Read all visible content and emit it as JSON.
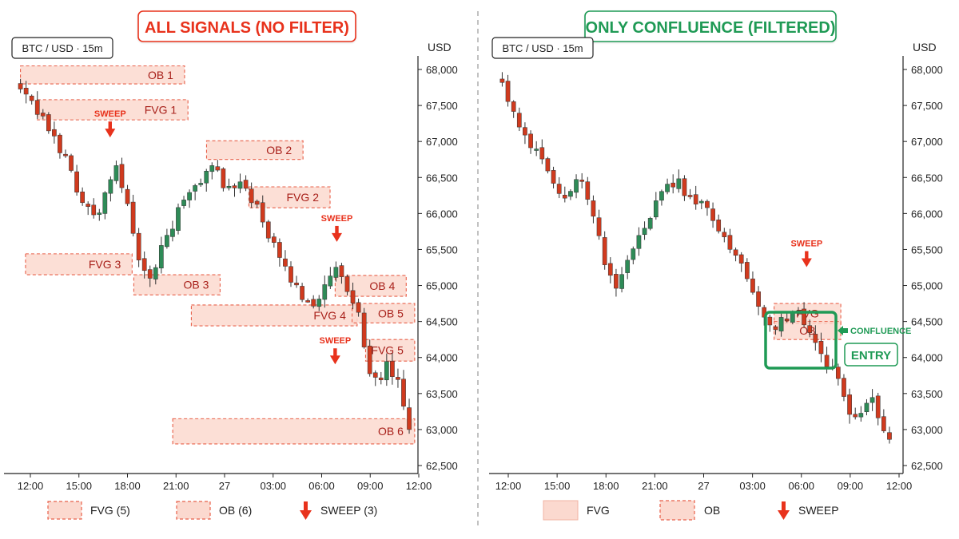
{
  "colors": {
    "up": "#2e8b57",
    "down": "#d03a1e",
    "zone_fill": "#fbd9cf",
    "zone_stroke": "#e8604a",
    "zone_text": "#a8201a",
    "sweep": "#e8321c",
    "confluence": "#1f9a55",
    "title_red": "#e8321c",
    "axis": "#222222",
    "divider": "#9a9a9a"
  },
  "left_panel": {
    "title": "ALL SIGNALS (NO FILTER)",
    "symbol": "BTC / USD · 15m",
    "legend": [
      {
        "icon": "fvg-box-icon",
        "label": "FVG (5)"
      },
      {
        "icon": "ob-box-icon",
        "label": "OB (6)"
      },
      {
        "icon": "sweep-arrow-icon",
        "label": "SWEEP (3)"
      }
    ]
  },
  "right_panel": {
    "title": "ONLY CONFLUENCE (FILTERED)",
    "symbol": "BTC / USD · 15m",
    "confluence_label": "CONFLUENCE",
    "entry_label": "ENTRY",
    "legend": [
      {
        "icon": "fvg-box-icon",
        "label": "FVG"
      },
      {
        "icon": "ob-box-icon",
        "label": "OB"
      },
      {
        "icon": "sweep-arrow-icon",
        "label": "SWEEP"
      }
    ]
  },
  "chart_data": [
    {
      "type": "candlestick",
      "title": "ALL SIGNALS (NO FILTER)",
      "symbol": "BTC / USD · 15m",
      "ylabel": "USD",
      "ylim": [
        62500,
        68000
      ],
      "yticks": [
        62500,
        63000,
        63500,
        64000,
        64500,
        65000,
        65500,
        66000,
        66500,
        67000,
        67500,
        68000
      ],
      "ytick_labels": [
        "62,500",
        "63,000",
        "63,500",
        "64,000",
        "64,500",
        "65,000",
        "65,500",
        "66,000",
        "66,500",
        "67,000",
        "67,500",
        "68,000"
      ],
      "xtick_labels": [
        "12:00",
        "15:00",
        "18:00",
        "21:00",
        "27",
        "03:00",
        "06:00",
        "09:00",
        "12:00"
      ],
      "x_range": [
        -0.5,
        23.4
      ],
      "key_closes": [
        [
          0,
          67700
        ],
        [
          1.3,
          67300
        ],
        [
          2.5,
          66850
        ],
        [
          3.8,
          66100
        ],
        [
          4.5,
          65950
        ],
        [
          5.3,
          66400
        ],
        [
          5.7,
          66700
        ],
        [
          6.2,
          66250
        ],
        [
          6.7,
          65600
        ],
        [
          7.2,
          65250
        ],
        [
          7.6,
          65000
        ],
        [
          8.3,
          65500
        ],
        [
          9.5,
          66100
        ],
        [
          10.7,
          66500
        ],
        [
          11.5,
          66650
        ],
        [
          12.3,
          66300
        ],
        [
          13.2,
          66450
        ],
        [
          14.0,
          66050
        ],
        [
          15.2,
          65400
        ],
        [
          16.3,
          64950
        ],
        [
          17.2,
          64750
        ],
        [
          18.0,
          64950
        ],
        [
          18.7,
          65250
        ],
        [
          19.3,
          64900
        ],
        [
          20.0,
          64550
        ],
        [
          20.7,
          63800
        ],
        [
          21.2,
          63550
        ],
        [
          21.7,
          63900
        ],
        [
          22.2,
          63700
        ],
        [
          22.7,
          63300
        ],
        [
          23.0,
          62900
        ]
      ],
      "signals": [
        {
          "kind": "OB",
          "label": "OB 1",
          "x0": 0,
          "x1": 9.7,
          "y0": 67800,
          "y1": 68050
        },
        {
          "kind": "FVG",
          "label": "FVG 1",
          "x0": 1.0,
          "x1": 9.9,
          "y0": 67300,
          "y1": 67580
        },
        {
          "kind": "OB",
          "label": "OB 2",
          "x0": 11.0,
          "x1": 16.7,
          "y0": 66750,
          "y1": 67010
        },
        {
          "kind": "FVG",
          "label": "FVG 2",
          "x0": 13.5,
          "x1": 18.3,
          "y0": 66080,
          "y1": 66370
        },
        {
          "kind": "FVG",
          "label": "FVG 3",
          "x0": 0.3,
          "x1": 6.6,
          "y0": 65150,
          "y1": 65440
        },
        {
          "kind": "OB",
          "label": "OB 3",
          "x0": 6.7,
          "x1": 11.8,
          "y0": 64870,
          "y1": 65150
        },
        {
          "kind": "OB",
          "label": "OB 4",
          "x0": 18.6,
          "x1": 22.8,
          "y0": 64850,
          "y1": 65140
        },
        {
          "kind": "FVG",
          "label": "FVG 4",
          "x0": 10.1,
          "x1": 19.9,
          "y0": 64440,
          "y1": 64730
        },
        {
          "kind": "OB",
          "label": "OB 5",
          "x0": 19.6,
          "x1": 23.3,
          "y0": 64480,
          "y1": 64750
        },
        {
          "kind": "FVG",
          "label": "FVG 5",
          "x0": 20.4,
          "x1": 23.3,
          "y0": 63950,
          "y1": 64250
        },
        {
          "kind": "OB",
          "label": "OB 6",
          "x0": 9.0,
          "x1": 23.3,
          "y0": 62800,
          "y1": 63150
        }
      ],
      "sweeps": [
        {
          "label": "SWEEP",
          "x": 5.3,
          "y": 67100
        },
        {
          "label": "SWEEP",
          "x": 18.7,
          "y": 65650
        },
        {
          "label": "SWEEP",
          "x": 18.6,
          "y": 63950
        }
      ]
    },
    {
      "type": "candlestick",
      "title": "ONLY CONFLUENCE (FILTERED)",
      "symbol": "BTC / USD · 15m",
      "ylabel": "USD",
      "ylim": [
        62500,
        68000
      ],
      "yticks": [
        62500,
        63000,
        63500,
        64000,
        64500,
        65000,
        65500,
        66000,
        66500,
        67000,
        67500,
        68000
      ],
      "ytick_labels": [
        "62,500",
        "63,000",
        "63,500",
        "64,000",
        "64,500",
        "65,000",
        "65,500",
        "66,000",
        "66,500",
        "67,000",
        "67,500",
        "68,000"
      ],
      "xtick_labels": [
        "12:00",
        "15:00",
        "18:00",
        "21:00",
        "27",
        "03:00",
        "06:00",
        "09:00",
        "12:00"
      ],
      "x_range": [
        -0.3,
        23.3
      ],
      "key_closes": [
        [
          0,
          67750
        ],
        [
          0.8,
          67300
        ],
        [
          1.6,
          66900
        ],
        [
          2.5,
          66700
        ],
        [
          3.3,
          66200
        ],
        [
          4.1,
          66300
        ],
        [
          4.6,
          66550
        ],
        [
          5.2,
          66100
        ],
        [
          5.7,
          65600
        ],
        [
          6.2,
          65200
        ],
        [
          6.6,
          64950
        ],
        [
          7.0,
          65200
        ],
        [
          7.7,
          65550
        ],
        [
          8.4,
          65900
        ],
        [
          9.1,
          66200
        ],
        [
          9.9,
          66400
        ],
        [
          10.3,
          66450
        ],
        [
          10.8,
          66200
        ],
        [
          11.6,
          66150
        ],
        [
          12.2,
          65950
        ],
        [
          12.8,
          65750
        ],
        [
          13.6,
          65400
        ],
        [
          14.4,
          65050
        ],
        [
          15.2,
          64700
        ],
        [
          15.8,
          64350
        ],
        [
          16.5,
          64550
        ],
        [
          17.2,
          64700
        ],
        [
          17.8,
          64450
        ],
        [
          18.4,
          64150
        ],
        [
          19.1,
          63900
        ],
        [
          19.9,
          63500
        ],
        [
          20.6,
          63150
        ],
        [
          21.2,
          63250
        ],
        [
          21.6,
          63400
        ],
        [
          22.2,
          63050
        ],
        [
          22.8,
          62800
        ]
      ],
      "signals": [
        {
          "kind": "FVG",
          "label": "FVG",
          "x0": 15.9,
          "x1": 19.8,
          "y0": 64470,
          "y1": 64750
        },
        {
          "kind": "OB",
          "label": "OB",
          "x0": 15.9,
          "x1": 19.8,
          "y0": 64250,
          "y1": 64500
        }
      ],
      "sweeps": [
        {
          "label": "SWEEP",
          "x": 17.8,
          "y": 65300
        }
      ],
      "confluence": {
        "label": "CONFLUENCE",
        "entry": "ENTRY"
      }
    }
  ]
}
